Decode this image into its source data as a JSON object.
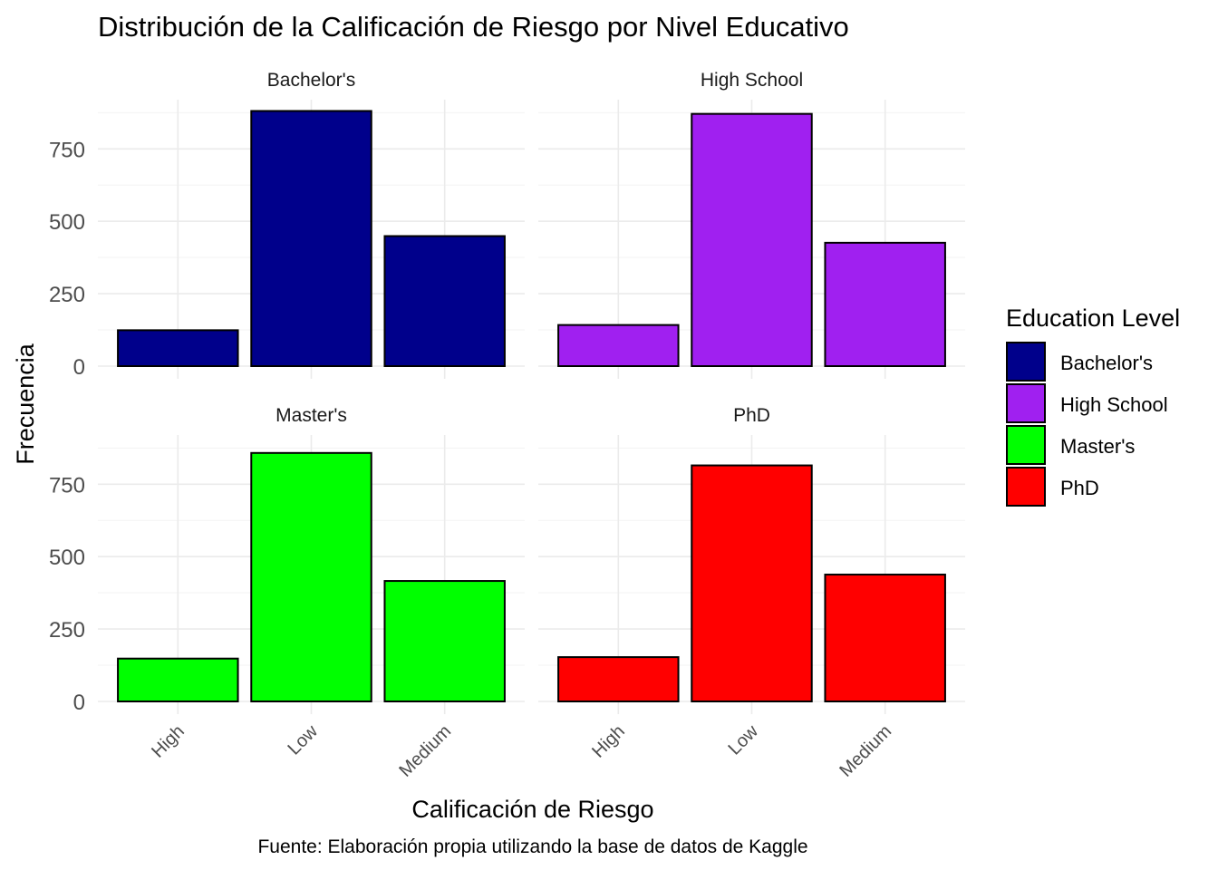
{
  "chart_data": {
    "type": "bar",
    "title": "Distribución de la Calificación de Riesgo por Nivel Educativo",
    "xlabel": "Calificación de Riesgo",
    "ylabel": "Frecuencia",
    "caption": "Fuente: Elaboración propia utilizando la base de datos de Kaggle",
    "categories": [
      "High",
      "Low",
      "Medium"
    ],
    "ylim": [
      0,
      920
    ],
    "yticks": [
      0,
      250,
      500,
      750
    ],
    "grid": true,
    "legend": {
      "title": "Education Level",
      "placement": "right"
    },
    "series": [
      {
        "name": "Bachelor's",
        "color": "#00008B",
        "values": [
          124,
          881,
          449
        ]
      },
      {
        "name": "High School",
        "color": "#A020F0",
        "values": [
          142,
          871,
          426
        ]
      },
      {
        "name": "Master's",
        "color": "#00FF00",
        "values": [
          148,
          858,
          416
        ]
      },
      {
        "name": "PhD",
        "color": "#FF0000",
        "values": [
          153,
          815,
          438
        ]
      }
    ]
  }
}
